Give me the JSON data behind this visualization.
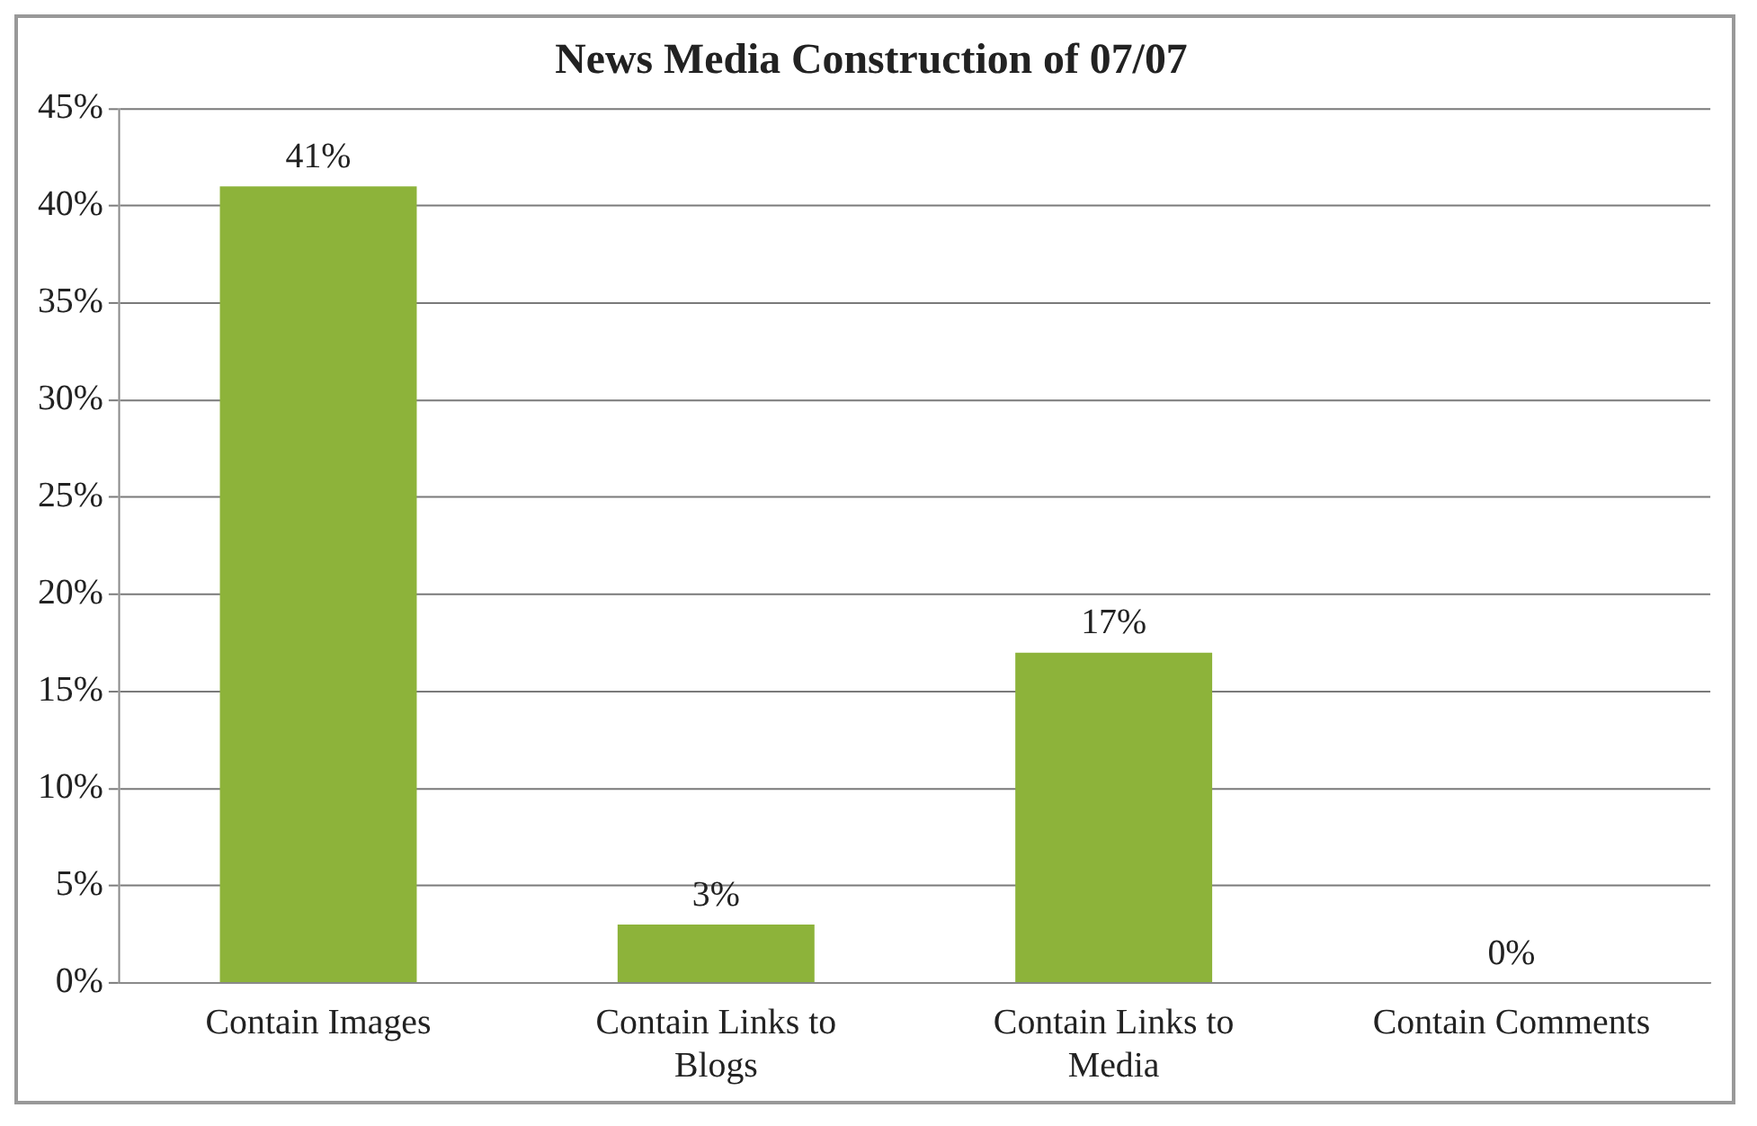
{
  "chart_data": {
    "type": "bar",
    "title": "News Media Construction of 07/07",
    "categories": [
      "Contain Images",
      "Contain Links to Blogs",
      "Contain Links to Media",
      "Contain Comments"
    ],
    "values": [
      41,
      3,
      17,
      0
    ],
    "value_labels": [
      "41%",
      "3%",
      "17%",
      "0%"
    ],
    "color": "#8db33a",
    "ylim": [
      0,
      45
    ],
    "yticks": [
      {
        "value": 0,
        "label": "0%"
      },
      {
        "value": 5,
        "label": "5%"
      },
      {
        "value": 10,
        "label": "10%"
      },
      {
        "value": 15,
        "label": "15%"
      },
      {
        "value": 20,
        "label": "20%"
      },
      {
        "value": 25,
        "label": "25%"
      },
      {
        "value": 30,
        "label": "30%"
      },
      {
        "value": 35,
        "label": "35%"
      },
      {
        "value": 40,
        "label": "40%"
      },
      {
        "value": 45,
        "label": "45%"
      }
    ],
    "grid": "y",
    "legend": false
  }
}
